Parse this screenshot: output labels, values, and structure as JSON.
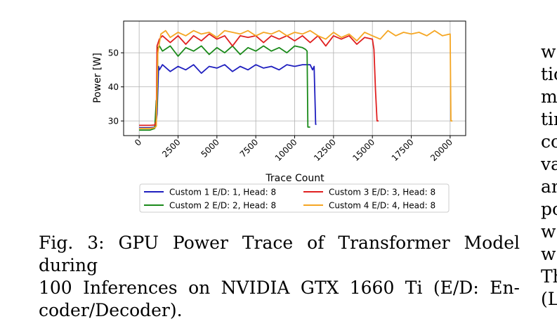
{
  "chart_data": {
    "type": "line",
    "title": "",
    "xlabel": "Trace Count",
    "ylabel": "Power [W]",
    "xlim": [
      -1000,
      21000
    ],
    "ylim": [
      25.7,
      59.3
    ],
    "xticks": [
      0,
      2500,
      5000,
      7500,
      10000,
      12500,
      15000,
      17500,
      20000
    ],
    "yticks": [
      30,
      40,
      50
    ],
    "grid": true,
    "legend_position": "below",
    "series": [
      {
        "name": "Custom 1 E/D: 1, Head: 8",
        "color": "#1f1fbf",
        "x": [
          0,
          700,
          1050,
          1150,
          1250,
          1300,
          1500,
          2000,
          2500,
          3000,
          3500,
          4000,
          4500,
          5000,
          5500,
          6000,
          6500,
          7000,
          7500,
          8000,
          8500,
          9000,
          9500,
          10000,
          10500,
          11000,
          11050,
          11150,
          11250,
          11350,
          11400
        ],
        "y": [
          28.0,
          28.0,
          28.2,
          32.0,
          46.0,
          45.0,
          46.5,
          44.5,
          46.0,
          45.0,
          46.5,
          44.0,
          46.0,
          45.5,
          46.5,
          44.5,
          46.0,
          45.0,
          46.5,
          45.5,
          46.0,
          45.0,
          46.5,
          46.0,
          46.5,
          46.5,
          46.0,
          45.0,
          46.0,
          29.0,
          29.0
        ]
      },
      {
        "name": "Custom 2 E/D: 2, Head: 8",
        "color": "#1a8a1a",
        "x": [
          0,
          700,
          1000,
          1100,
          1150,
          1200,
          1300,
          1500,
          2000,
          2500,
          3000,
          3500,
          4000,
          4500,
          5000,
          5500,
          6000,
          6500,
          7000,
          7500,
          8000,
          8500,
          9000,
          9500,
          10000,
          10500,
          10700,
          10800,
          10850,
          11000
        ],
        "y": [
          27.3,
          27.3,
          27.8,
          36.0,
          34.0,
          51.5,
          52.0,
          50.5,
          52.0,
          49.0,
          51.5,
          50.5,
          52.0,
          49.5,
          51.5,
          50.0,
          52.0,
          49.5,
          51.5,
          50.5,
          52.0,
          50.5,
          51.5,
          50.0,
          52.0,
          51.5,
          51.0,
          50.5,
          28.2,
          28.2
        ]
      },
      {
        "name": "Custom 3 E/D: 3, Head: 8",
        "color": "#e02020",
        "x": [
          0,
          700,
          1000,
          1100,
          1150,
          1300,
          1500,
          2000,
          2500,
          3000,
          3500,
          4000,
          4500,
          5000,
          5500,
          6000,
          6500,
          7000,
          7500,
          8000,
          8500,
          9000,
          9500,
          10000,
          10500,
          11000,
          11500,
          12000,
          12500,
          13000,
          13500,
          14000,
          14500,
          15000,
          15100,
          15200,
          15300,
          15400
        ],
        "y": [
          28.7,
          28.7,
          28.8,
          30.0,
          52.0,
          54.0,
          55.0,
          53.0,
          55.0,
          52.5,
          55.0,
          53.5,
          55.5,
          54.0,
          55.0,
          52.0,
          55.0,
          54.5,
          55.0,
          53.0,
          55.0,
          54.0,
          55.0,
          53.5,
          55.0,
          53.0,
          55.0,
          52.0,
          55.0,
          54.0,
          55.0,
          52.5,
          54.5,
          54.0,
          51.0,
          39.0,
          30.0,
          30.0
        ]
      },
      {
        "name": "Custom 4 E/D: 4, Head: 8",
        "color": "#f5a623",
        "x": [
          0,
          700,
          1000,
          1100,
          1200,
          1400,
          1700,
          2000,
          2500,
          3000,
          3500,
          4000,
          4500,
          5000,
          5500,
          6000,
          6500,
          7000,
          7500,
          8000,
          8500,
          9000,
          9500,
          10000,
          10500,
          11000,
          11500,
          12000,
          12500,
          13000,
          13500,
          14000,
          14500,
          15000,
          15500,
          16000,
          16500,
          17000,
          17500,
          18000,
          18500,
          19000,
          19500,
          20000,
          20050,
          20150
        ],
        "y": [
          27.8,
          27.8,
          28.0,
          28.5,
          50.0,
          55.5,
          56.5,
          54.5,
          56.0,
          55.0,
          56.5,
          55.5,
          56.0,
          54.5,
          56.5,
          56.0,
          55.5,
          56.5,
          55.0,
          56.0,
          55.5,
          56.5,
          55.0,
          56.0,
          55.5,
          56.5,
          55.0,
          54.0,
          56.0,
          54.5,
          55.5,
          53.5,
          56.0,
          55.0,
          54.0,
          56.5,
          55.0,
          56.0,
          55.5,
          56.0,
          55.0,
          56.5,
          55.0,
          55.5,
          30.0,
          30.0
        ]
      }
    ]
  },
  "caption": {
    "line1": "Fig. 3: GPU Power Trace of Transformer Model during",
    "line2": "100 Inferences on NVIDIA GTX 1660 Ti (E/D: En-",
    "line3": "coder/Decoder)."
  },
  "right_column": [
    "w",
    "tic",
    "m",
    "tin",
    "co",
    "va",
    "an",
    "po",
    "w",
    "w",
    "Th",
    "(L"
  ]
}
